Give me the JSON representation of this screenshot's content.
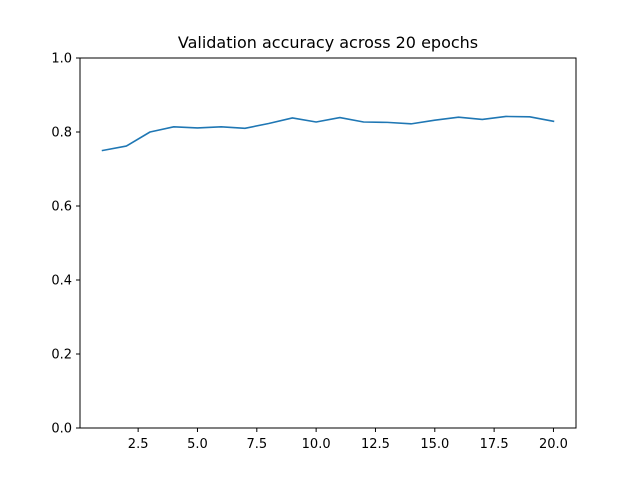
{
  "chart_data": {
    "type": "line",
    "title": "Validation accuracy across 20 epochs",
    "xlabel": "",
    "ylabel": "",
    "xlim": [
      0.05,
      20.95
    ],
    "ylim": [
      0.0,
      1.0
    ],
    "grid": false,
    "x_ticks": [
      2.5,
      5.0,
      7.5,
      10.0,
      12.5,
      15.0,
      17.5,
      20.0
    ],
    "x_tick_labels": [
      "2.5",
      "5.0",
      "7.5",
      "10.0",
      "12.5",
      "15.0",
      "17.5",
      "20.0"
    ],
    "y_ticks": [
      0.0,
      0.2,
      0.4,
      0.6,
      0.8,
      1.0
    ],
    "y_tick_labels": [
      "0.0",
      "0.2",
      "0.4",
      "0.6",
      "0.8",
      "1.0"
    ],
    "series": [
      {
        "color": "#1f77b4",
        "x": [
          1,
          2,
          3,
          4,
          5,
          6,
          7,
          8,
          9,
          10,
          11,
          12,
          13,
          14,
          15,
          16,
          17,
          18,
          19,
          20
        ],
        "values": [
          0.75,
          0.762,
          0.8,
          0.814,
          0.811,
          0.814,
          0.81,
          0.823,
          0.838,
          0.827,
          0.839,
          0.827,
          0.826,
          0.822,
          0.832,
          0.84,
          0.834,
          0.842,
          0.841,
          0.829
        ]
      }
    ]
  }
}
